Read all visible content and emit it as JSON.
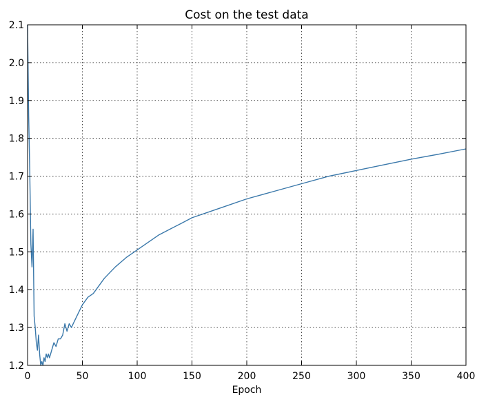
{
  "chart_data": {
    "type": "line",
    "title": "Cost on the test data",
    "xlabel": "Epoch",
    "ylabel": "",
    "xlim": [
      0,
      400
    ],
    "ylim": [
      1.2,
      2.1
    ],
    "xticks": [
      0,
      50,
      100,
      150,
      200,
      250,
      300,
      350,
      400
    ],
    "xtick_labels": [
      "0",
      "50",
      "100",
      "150",
      "200",
      "250",
      "300",
      "350",
      "400"
    ],
    "yticks": [
      1.2,
      1.3,
      1.4,
      1.5,
      1.6,
      1.7,
      1.8,
      1.9,
      2.0,
      2.1
    ],
    "ytick_labels": [
      "1.2",
      "1.3",
      "1.4",
      "1.5",
      "1.6",
      "1.7",
      "1.8",
      "1.9",
      "2.0",
      "2.1"
    ],
    "grid": true,
    "series": [
      {
        "color": "#3a78aa",
        "x": [
          0,
          1,
          2,
          3,
          4,
          5,
          6,
          7,
          8,
          9,
          10,
          11,
          12,
          13,
          14,
          15,
          16,
          17,
          18,
          19,
          20,
          22,
          24,
          26,
          28,
          30,
          32,
          34,
          36,
          38,
          40,
          45,
          50,
          55,
          60,
          70,
          80,
          90,
          100,
          110,
          120,
          130,
          140,
          150,
          175,
          200,
          225,
          250,
          275,
          300,
          325,
          350,
          375,
          400
        ],
        "y": [
          2.1,
          1.86,
          1.71,
          1.52,
          1.46,
          1.56,
          1.33,
          1.3,
          1.26,
          1.24,
          1.28,
          1.23,
          1.2,
          1.21,
          1.2,
          1.22,
          1.21,
          1.23,
          1.22,
          1.23,
          1.22,
          1.24,
          1.26,
          1.25,
          1.27,
          1.27,
          1.28,
          1.31,
          1.29,
          1.31,
          1.3,
          1.33,
          1.36,
          1.38,
          1.39,
          1.43,
          1.46,
          1.485,
          1.505,
          1.525,
          1.545,
          1.56,
          1.575,
          1.59,
          1.615,
          1.64,
          1.66,
          1.68,
          1.7,
          1.715,
          1.73,
          1.745,
          1.758,
          1.772
        ]
      }
    ]
  }
}
